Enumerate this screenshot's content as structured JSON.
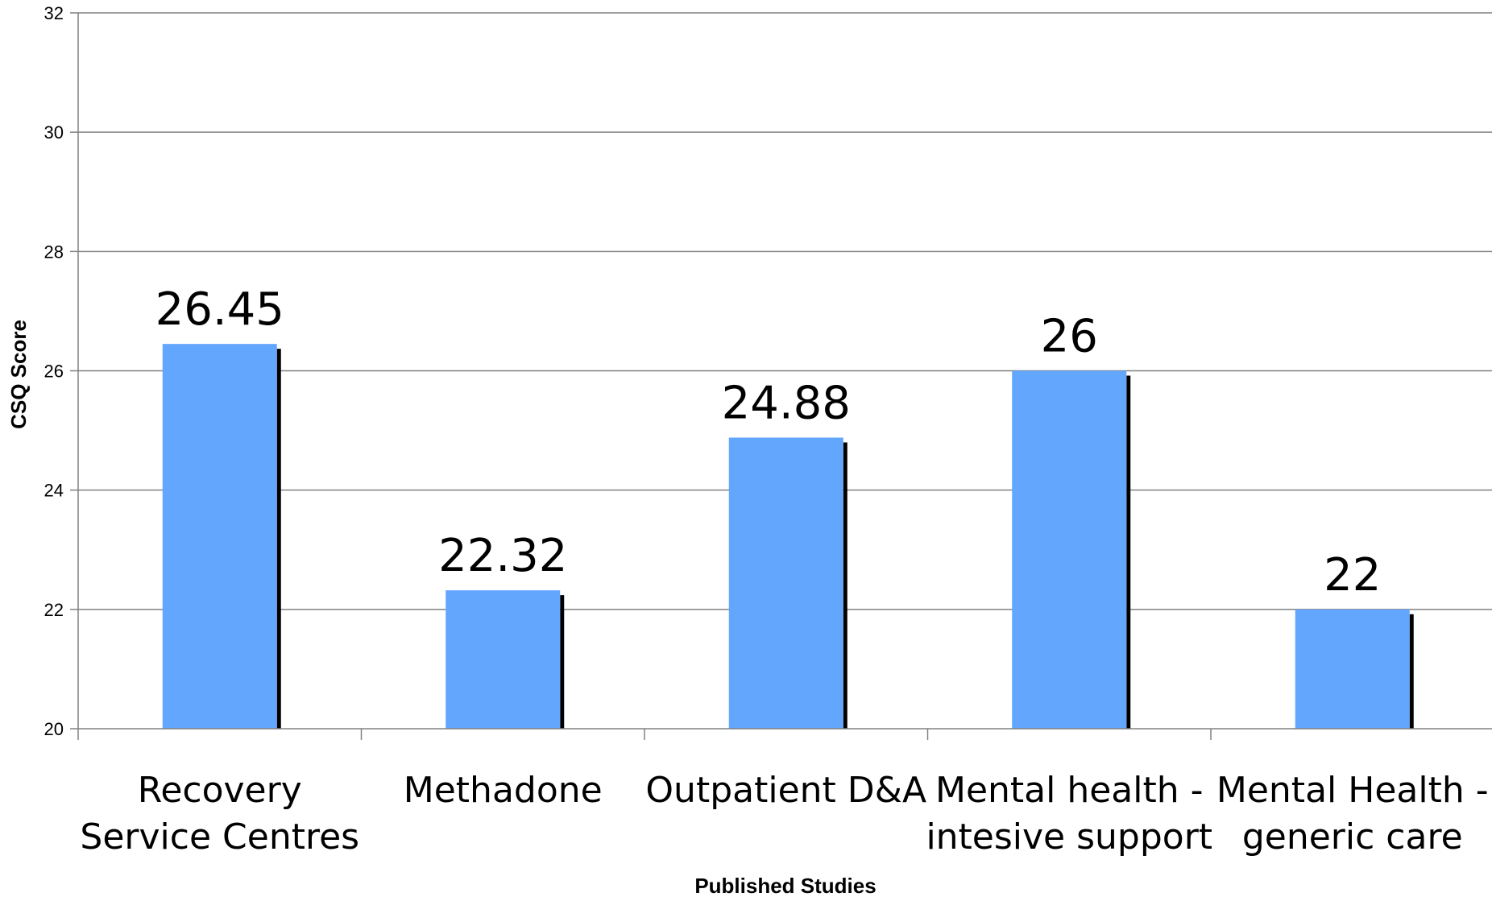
{
  "chart_data": {
    "type": "bar",
    "categories": [
      [
        "Recovery",
        "Service Centres"
      ],
      [
        "Methadone"
      ],
      [
        "Outpatient D&A"
      ],
      [
        "Mental health -",
        "intesive support"
      ],
      [
        "Mental Health -",
        "generic care"
      ]
    ],
    "values": [
      26.45,
      22.32,
      24.88,
      26,
      22
    ],
    "data_labels": [
      "26.45",
      "22.32",
      "24.88",
      "26",
      "22"
    ],
    "xlabel": "Published Studies",
    "ylabel": "CSQ Score",
    "ylim": [
      20,
      32
    ],
    "yticks": [
      20,
      22,
      24,
      26,
      28,
      30,
      32
    ],
    "grid": true,
    "legend": "none",
    "colors": {
      "bar": "#63a6fd",
      "shadow": "#000000",
      "grid": "#808080",
      "axis": "#808080"
    }
  }
}
